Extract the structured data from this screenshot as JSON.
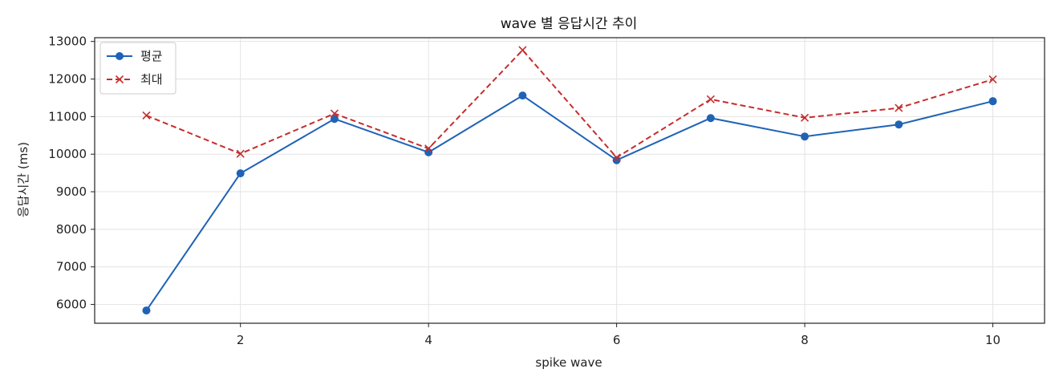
{
  "chart_data": {
    "type": "line",
    "title": "wave 별 응답시간 추이",
    "xlabel": "spike wave",
    "ylabel": "응답시간 (ms)",
    "xlim": [
      0.45,
      10.55
    ],
    "ylim": [
      5500,
      13100
    ],
    "xticks": [
      2,
      4,
      6,
      8,
      10
    ],
    "yticks": [
      6000,
      7000,
      8000,
      9000,
      10000,
      11000,
      12000,
      13000
    ],
    "grid": true,
    "legend_position": "top-left",
    "x": [
      1,
      2,
      3,
      4,
      5,
      6,
      7,
      8,
      9,
      10
    ],
    "series": [
      {
        "name": "평균",
        "color": "#1f63b6",
        "line_style": "solid",
        "marker": "circle",
        "values": [
          5840,
          9490,
          10940,
          10050,
          11560,
          9840,
          10960,
          10470,
          10790,
          11410
        ]
      },
      {
        "name": "최대",
        "color": "#c62d2d",
        "line_style": "dashed",
        "marker": "x",
        "values": [
          11030,
          10010,
          11080,
          10150,
          12770,
          9910,
          11460,
          10970,
          11230,
          11990
        ]
      }
    ]
  }
}
